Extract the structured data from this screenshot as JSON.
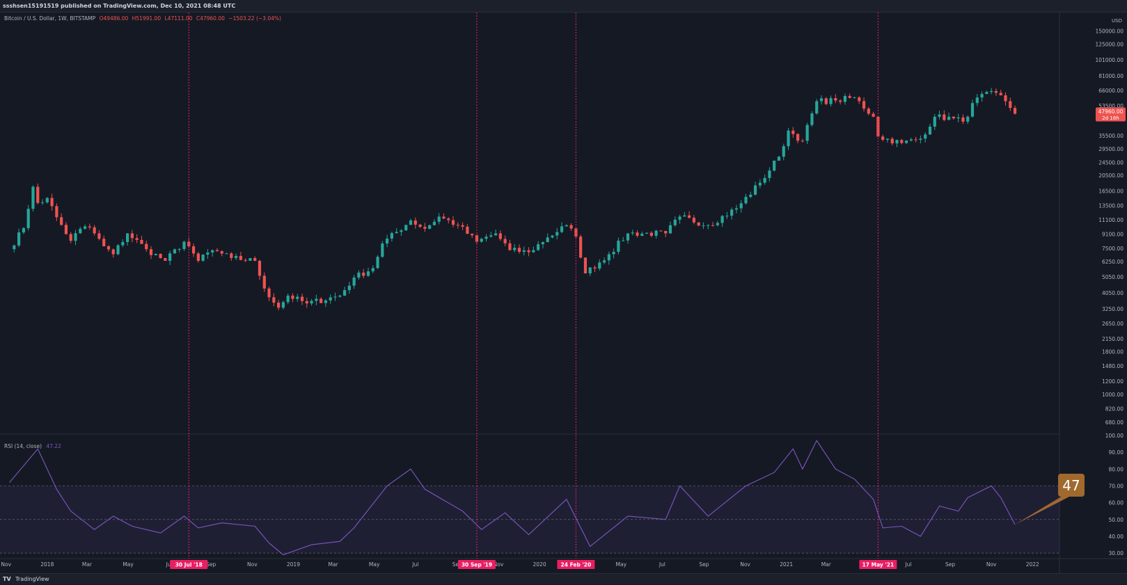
{
  "header": {
    "publish_line": "ssshsen15191519 published on TradingView.com, Dec 10, 2021 08:48 UTC",
    "symbol": "Bitcoin / U.S. Dollar, 1W, BITSTAMP",
    "ohlc": {
      "open": "O49486.00",
      "high": "H51991.00",
      "low": "L47111.00",
      "close": "C47960.00",
      "change": "−1503.22 (−3.04%)"
    }
  },
  "footer": {
    "logo": "TV",
    "brand": "TradingView"
  },
  "colors": {
    "up": "#26a69a",
    "down": "#ef5350",
    "rsi": "#7e57c2",
    "marker_line": "#e91e63",
    "background": "#151924",
    "callout": "#a0692e"
  },
  "chart_data": [
    {
      "type": "candlestick",
      "price_axis": {
        "unit": "USD",
        "scale": "log",
        "labels": [
          "150000.00",
          "125000.00",
          "101000.00",
          "81000.00",
          "66000.00",
          "53500.00",
          "35500.00",
          "29500.00",
          "24500.00",
          "20500.00",
          "16500.00",
          "13500.00",
          "11100.00",
          "9100.00",
          "7500.00",
          "6250.00",
          "5050.00",
          "4050.00",
          "3250.00",
          "2650.00",
          "2150.00",
          "1800.00",
          "1480.00",
          "1200.00",
          "1000.00",
          "820.00",
          "680.00"
        ]
      },
      "last_price": {
        "value": "47960.00",
        "countdown": "2d 16h"
      },
      "time_axis": {
        "labels": [
          "Nov",
          "2018",
          "Mar",
          "May",
          "Jul",
          "Sep",
          "Nov",
          "2019",
          "Mar",
          "May",
          "Jul",
          "Sep",
          "Nov",
          "2020",
          "May",
          "Jul",
          "Sep",
          "Nov",
          "2021",
          "Mar",
          "Jul",
          "Sep",
          "Nov",
          "2022"
        ]
      },
      "markers": [
        "30 Jul '18",
        "30 Sep '19",
        "24 Feb '20",
        "17 May '21"
      ],
      "ohlc_anchor_closes": [
        [
          "2017-11-06",
          7400
        ],
        [
          "2017-11-27",
          9900
        ],
        [
          "2017-12-11",
          17500
        ],
        [
          "2017-12-18",
          14000
        ],
        [
          "2018-01-01",
          15000
        ],
        [
          "2018-01-15",
          11500
        ],
        [
          "2018-02-05",
          8300
        ],
        [
          "2018-02-19",
          9800
        ],
        [
          "2018-03-05",
          10000
        ],
        [
          "2018-03-26",
          7700
        ],
        [
          "2018-04-09",
          6900
        ],
        [
          "2018-04-30",
          9200
        ],
        [
          "2018-05-28",
          7400
        ],
        [
          "2018-06-25",
          6300
        ],
        [
          "2018-07-23",
          8200
        ],
        [
          "2018-07-30",
          7700
        ],
        [
          "2018-08-13",
          6300
        ],
        [
          "2018-09-03",
          7300
        ],
        [
          "2018-10-01",
          6550
        ],
        [
          "2018-11-05",
          6300
        ],
        [
          "2018-11-19",
          4300
        ],
        [
          "2018-12-10",
          3300
        ],
        [
          "2018-12-24",
          3900
        ],
        [
          "2019-01-21",
          3500
        ],
        [
          "2019-03-11",
          3900
        ],
        [
          "2019-04-01",
          5000
        ],
        [
          "2019-04-29",
          5700
        ],
        [
          "2019-05-13",
          8000
        ],
        [
          "2019-06-24",
          11000
        ],
        [
          "2019-07-15",
          9800
        ],
        [
          "2019-08-05",
          11600
        ],
        [
          "2019-09-02",
          10300
        ],
        [
          "2019-09-30",
          8200
        ],
        [
          "2019-10-28",
          9200
        ],
        [
          "2019-11-18",
          7300
        ],
        [
          "2019-12-16",
          7100
        ],
        [
          "2020-01-13",
          8700
        ],
        [
          "2020-02-10",
          10300
        ],
        [
          "2020-02-24",
          8800
        ],
        [
          "2020-03-09",
          5300
        ],
        [
          "2020-04-13",
          6900
        ],
        [
          "2020-05-11",
          9200
        ],
        [
          "2020-07-06",
          9200
        ],
        [
          "2020-07-27",
          11600
        ],
        [
          "2020-09-07",
          10300
        ],
        [
          "2020-10-19",
          13000
        ],
        [
          "2020-11-23",
          18500
        ],
        [
          "2020-12-21",
          26500
        ],
        [
          "2021-01-04",
          38000
        ],
        [
          "2021-01-25",
          33000
        ],
        [
          "2021-02-15",
          57000
        ],
        [
          "2021-03-15",
          57500
        ],
        [
          "2021-04-12",
          60000
        ],
        [
          "2021-05-10",
          46000
        ],
        [
          "2021-05-17",
          35000
        ],
        [
          "2021-06-21",
          32000
        ],
        [
          "2021-07-19",
          34000
        ],
        [
          "2021-08-09",
          46000
        ],
        [
          "2021-09-06",
          45000
        ],
        [
          "2021-09-20",
          43000
        ],
        [
          "2021-10-11",
          60000
        ],
        [
          "2021-11-08",
          64000
        ],
        [
          "2021-11-22",
          57000
        ],
        [
          "2021-12-06",
          47960
        ]
      ]
    },
    {
      "type": "line",
      "title": "RSI (14, close)",
      "last_value": "47.22",
      "callout": "47",
      "y_axis": {
        "labels": [
          "100.00",
          "90.00",
          "80.00",
          "70.00",
          "60.00",
          "50.00",
          "40.00",
          "30.00"
        ],
        "ylim": [
          28,
          100
        ]
      },
      "band": [
        30,
        70
      ],
      "midline": 50,
      "series": [
        {
          "x": [
            "2017-11-06",
            "2017-12-18",
            "2018-01-15",
            "2018-02-05",
            "2018-03-12",
            "2018-04-09",
            "2018-05-07",
            "2018-06-18",
            "2018-07-23",
            "2018-08-13",
            "2018-09-17",
            "2018-11-05",
            "2018-11-26",
            "2018-12-17",
            "2019-01-28",
            "2019-03-11",
            "2019-04-01",
            "2019-05-20",
            "2019-06-24",
            "2019-07-15",
            "2019-09-09",
            "2019-10-07",
            "2019-11-11",
            "2019-12-16",
            "2020-02-10",
            "2020-03-16",
            "2020-05-11",
            "2020-07-06",
            "2020-07-27",
            "2020-09-07",
            "2020-11-02",
            "2020-12-14",
            "2021-01-11",
            "2021-01-25",
            "2021-02-15",
            "2021-03-15",
            "2021-04-12",
            "2021-05-10",
            "2021-05-24",
            "2021-06-21",
            "2021-07-19",
            "2021-08-16",
            "2021-09-13",
            "2021-09-27",
            "2021-11-01",
            "2021-11-15",
            "2021-12-06"
          ],
          "values": [
            72,
            92,
            68,
            55,
            44,
            52,
            46,
            42,
            52,
            45,
            48,
            46,
            36,
            29,
            35,
            37,
            45,
            70,
            80,
            68,
            55,
            44,
            54,
            41,
            62,
            34,
            52,
            50,
            70,
            52,
            70,
            78,
            92,
            80,
            97,
            80,
            74,
            62,
            45,
            46,
            40,
            58,
            55,
            63,
            70,
            63,
            47
          ]
        }
      ]
    }
  ]
}
